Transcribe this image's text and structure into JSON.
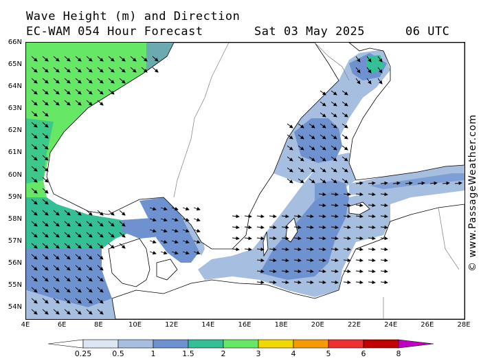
{
  "header": {
    "title": "Wave Height (m) and Direction",
    "model_line": "EC-WAM 054 Hour Forecast",
    "date": "Sat 03 May 2025",
    "time": "06 UTC"
  },
  "map": {
    "lat_labels": [
      "66N",
      "65N",
      "64N",
      "63N",
      "62N",
      "61N",
      "60N",
      "59N",
      "58N",
      "57N",
      "56N",
      "55N",
      "54N"
    ],
    "lon_labels": [
      "4E",
      "6E",
      "8E",
      "10E",
      "12E",
      "14E",
      "16E",
      "18E",
      "20E",
      "22E",
      "24E",
      "26E",
      "28E"
    ],
    "lon_range": [
      4,
      28
    ],
    "lat_range": [
      53.6,
      66
    ],
    "land_color": "#ffffff",
    "arrow_color": "#000000"
  },
  "watermark": "© www.PassageWeather.com",
  "legend": {
    "colors": [
      "#ffffff",
      "#dde6f3",
      "#a6bedf",
      "#6e92d0",
      "#33c096",
      "#66e866",
      "#f0d800",
      "#f59a00",
      "#ee3030",
      "#c00000",
      "#c000c0"
    ],
    "labels": [
      "0.25",
      "0.5",
      "1",
      "1.5",
      "2",
      "3",
      "4",
      "5",
      "6",
      "8"
    ]
  }
}
